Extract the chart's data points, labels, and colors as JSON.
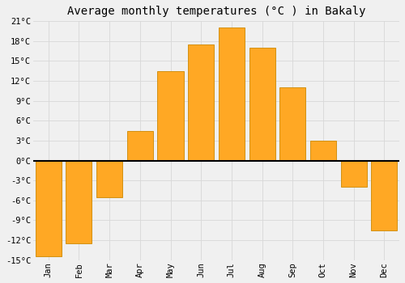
{
  "title": "Average monthly temperatures (°C ) in Bakaly",
  "months": [
    "Jan",
    "Feb",
    "Mar",
    "Apr",
    "May",
    "Jun",
    "Jul",
    "Aug",
    "Sep",
    "Oct",
    "Nov",
    "Dec"
  ],
  "values": [
    -14.5,
    -12.5,
    -5.5,
    4.5,
    13.5,
    17.5,
    20.0,
    17.0,
    11.0,
    3.0,
    -4.0,
    -10.5
  ],
  "bar_color": "#FFA824",
  "bar_edge_color": "#CC8800",
  "ylim": [
    -15,
    21
  ],
  "yticks": [
    -15,
    -12,
    -9,
    -6,
    -3,
    0,
    3,
    6,
    9,
    12,
    15,
    18,
    21
  ],
  "ytick_labels": [
    "-15°C",
    "-12°C",
    "-9°C",
    "-6°C",
    "-3°C",
    "0°C",
    "3°C",
    "6°C",
    "9°C",
    "12°C",
    "15°C",
    "18°C",
    "21°C"
  ],
  "background_color": "#f0f0f0",
  "grid_color": "#d8d8d8",
  "title_fontsize": 10,
  "tick_fontsize": 7.5,
  "bar_width": 0.85
}
